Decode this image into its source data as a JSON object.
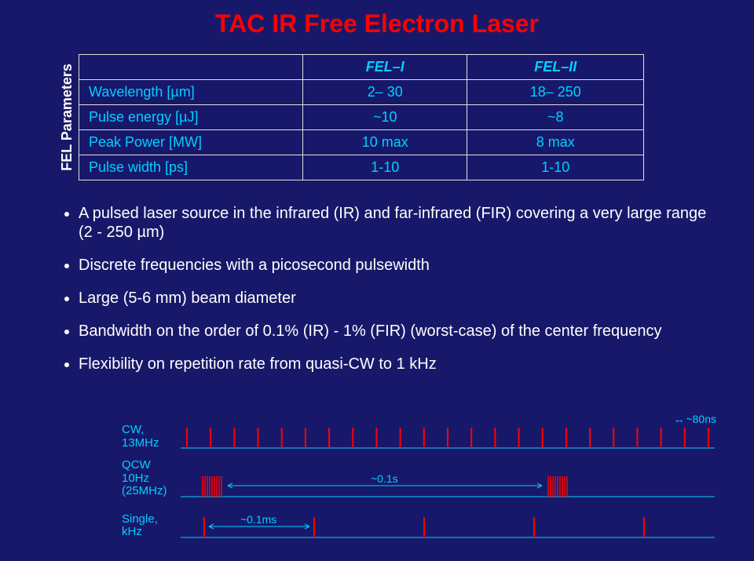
{
  "title": "TAC IR Free Electron Laser",
  "sideLabel": "FEL Parameters",
  "table": {
    "headers": [
      "",
      "FEL–I",
      "FEL–II"
    ],
    "rows": [
      [
        "Wavelength [µm]",
        "2– 30",
        "18– 250"
      ],
      [
        "Pulse energy [µJ]",
        "~10",
        "~8"
      ],
      [
        "Peak Power  [MW]",
        "10 max",
        "8 max"
      ],
      [
        "Pulse width [ps]",
        "1-10",
        "1-10"
      ]
    ]
  },
  "bullets": [
    "A pulsed laser source in the infrared (IR) and far-infrared (FIR) covering a very large range (2 - 250 µm)",
    "Discrete frequencies with a picosecond pulsewidth",
    "Large (5-6 mm) beam diameter",
    "Bandwidth on the order of 0.1% (IR) - 1% (FIR) (worst-case) of the center frequency",
    "Flexibility on repetition rate from quasi-CW to 1 kHz"
  ],
  "timingLabels": {
    "cw": "CW, 13MHz",
    "qcw": "QCW 10Hz (25MHz)",
    "single": "Single, kHz"
  },
  "timingAnnotations": {
    "t80ns": "~80ns",
    "t01s": "~0.1s",
    "t01ms": "~0.1ms"
  },
  "colors": {
    "background": "#18186a",
    "title": "#ff0000",
    "accent": "#00d0ff",
    "pulse": "#ff0000",
    "text": "#ffffff"
  }
}
